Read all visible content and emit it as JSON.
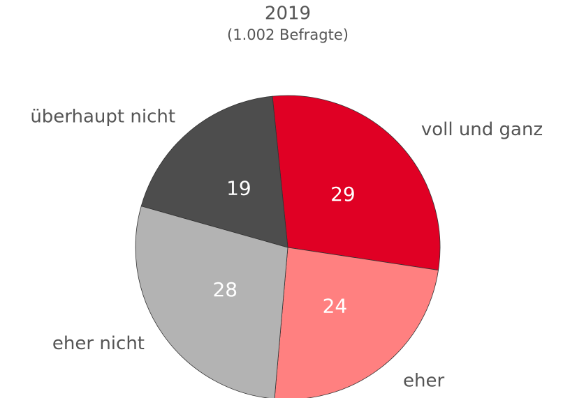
{
  "chart_data": {
    "type": "pie",
    "title": "2019",
    "subtitle": "(1.002 Befragte)",
    "categories": [
      "voll und ganz",
      "eher",
      "eher nicht",
      "überhaupt nicht"
    ],
    "values": [
      29,
      24,
      28,
      19
    ],
    "colors": [
      "#e00024",
      "#ff8080",
      "#b3b3b3",
      "#4d4d4d"
    ]
  }
}
